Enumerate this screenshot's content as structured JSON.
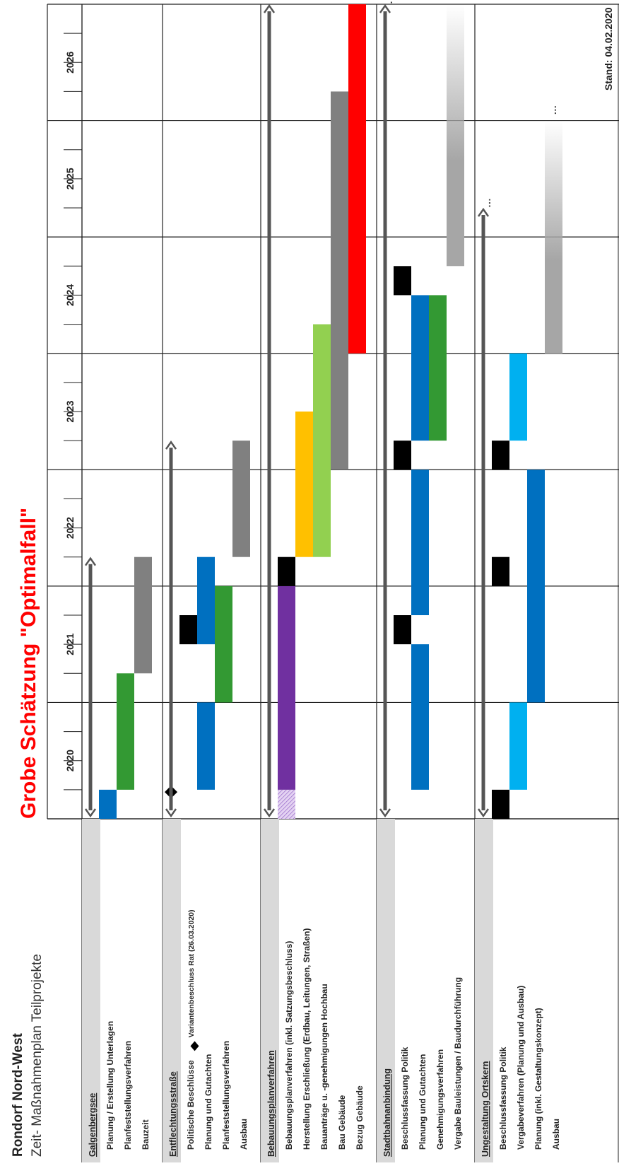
{
  "title": "Rondorf Nord-West",
  "subtitle": "Zeit- Maßnahmenplan Teilprojekte",
  "headline": "Grobe Schätzung \"Optimalfall\"",
  "stand": "Stand: 04.02.2020",
  "chart_data": {
    "type": "gantt",
    "years": [
      "2020",
      "2021",
      "2022",
      "2023",
      "2024",
      "2025",
      "2026"
    ],
    "time_unit": "quarter",
    "axis_range": [
      2019.75,
      2026.75
    ],
    "groups": [
      {
        "name": "Galgenbergsee",
        "range": [
          2019.75,
          2022.0
        ],
        "rows": [
          {
            "label": "Planung / Erstellung Unterlagen",
            "bars": [
              {
                "start": 2019.75,
                "end": 2020.0,
                "color": "#0070C0"
              }
            ]
          },
          {
            "label": "Planfeststellungsverfahren",
            "bars": [
              {
                "start": 2020.0,
                "end": 2021.0,
                "color": "#339933"
              }
            ]
          },
          {
            "label": "Bauzeit",
            "bars": [
              {
                "start": 2021.0,
                "end": 2022.0,
                "color": "#808080"
              }
            ]
          }
        ]
      },
      {
        "name": "Entflechtungsstraße",
        "range": [
          2019.75,
          2023.0
        ],
        "rows": [
          {
            "label": "Politische Beschlüsse",
            "label_extra": "Variantenbeschluss Rat (26.03.2020)",
            "bars": [
              {
                "start": 2021.25,
                "end": 2021.5,
                "color": "#000000"
              }
            ],
            "milestones": [
              2019.98
            ]
          },
          {
            "label": "Planung und Gutachten",
            "bars": [
              {
                "start": 2020.0,
                "end": 2020.75,
                "color": "#0070C0"
              },
              {
                "start": 2021.25,
                "end": 2022.0,
                "color": "#0070C0"
              }
            ]
          },
          {
            "label": "Planfeststellungsverfahren",
            "bars": [
              {
                "start": 2020.75,
                "end": 2021.75,
                "color": "#339933"
              }
            ]
          },
          {
            "label": "Ausbau",
            "bars": [
              {
                "start": 2022.0,
                "end": 2023.0,
                "color": "#808080"
              }
            ]
          }
        ]
      },
      {
        "name": "Bebauungsplanverfahren",
        "range": [
          2019.75,
          2026.75
        ],
        "rows": [
          {
            "label": "Bebauungsplanverfahren (inkl. Satzungsbeschluss)",
            "bars": [
              {
                "start": 2019.75,
                "end": 2020.0,
                "color": "#7030A0",
                "pattern": "hatch"
              },
              {
                "start": 2020.0,
                "end": 2021.75,
                "color": "#7030A0"
              },
              {
                "start": 2021.75,
                "end": 2022.0,
                "color": "#000000"
              }
            ]
          },
          {
            "label": "Herstellung Erschließung (Erdbau, Leitungen, Straßen)",
            "bars": [
              {
                "start": 2022.0,
                "end": 2023.25,
                "color": "#FFC000"
              }
            ]
          },
          {
            "label": "Bauanträge u. -genehmigungen Hochbau",
            "bars": [
              {
                "start": 2022.0,
                "end": 2024.0,
                "color": "#92D050"
              }
            ]
          },
          {
            "label": "Bau Gebäude",
            "bars": [
              {
                "start": 2022.75,
                "end": 2026.0,
                "color": "#808080"
              }
            ]
          },
          {
            "label": "Bezug Gebäude",
            "bars": [
              {
                "start": 2023.75,
                "end": 2026.75,
                "color": "#FF0000"
              }
            ]
          }
        ]
      },
      {
        "name": "Stadtbahnanbindung",
        "range": [
          2019.75,
          2026.75
        ],
        "continues": true,
        "rows": [
          {
            "label": "Beschlussfassung Politik",
            "bars": [
              {
                "start": 2021.25,
                "end": 2021.5,
                "color": "#000000"
              },
              {
                "start": 2022.75,
                "end": 2023.0,
                "color": "#000000"
              },
              {
                "start": 2024.25,
                "end": 2024.5,
                "color": "#000000"
              }
            ]
          },
          {
            "label": "Planung und Gutachten",
            "bars": [
              {
                "start": 2020.0,
                "end": 2021.25,
                "color": "#0070C0"
              },
              {
                "start": 2021.5,
                "end": 2022.75,
                "color": "#0070C0"
              },
              {
                "start": 2023.0,
                "end": 2024.25,
                "color": "#0070C0"
              }
            ]
          },
          {
            "label": "Genehmigungsverfahren",
            "bars": [
              {
                "start": 2023.0,
                "end": 2024.25,
                "color": "#339933"
              }
            ]
          },
          {
            "label": "Vergabe Bauleistungen / Baudurchführung",
            "bars": [
              {
                "start": 2024.5,
                "end": 2026.75,
                "color": "#A6A6A6",
                "fade": true
              }
            ],
            "continues": true
          }
        ]
      },
      {
        "name": "Ungestaltung Ortskern",
        "range": [
          2019.75,
          2025.0
        ],
        "continues": true,
        "rows": [
          {
            "label": "Beschlussfassung Politik",
            "bars": [
              {
                "start": 2019.75,
                "end": 2020.0,
                "color": "#000000"
              },
              {
                "start": 2021.75,
                "end": 2022.0,
                "color": "#000000"
              },
              {
                "start": 2022.75,
                "end": 2023.0,
                "color": "#000000"
              }
            ]
          },
          {
            "label": "Vergabeverfahren (Planung und Ausbau)",
            "bars": [
              {
                "start": 2020.0,
                "end": 2020.75,
                "color": "#00B0F0"
              },
              {
                "start": 2023.0,
                "end": 2023.75,
                "color": "#00B0F0"
              }
            ]
          },
          {
            "label": "Planung (inkl. Gestaltungskonzept)",
            "bars": [
              {
                "start": 2020.75,
                "end": 2022.75,
                "color": "#0070C0"
              }
            ]
          },
          {
            "label": "Ausbau",
            "bars": [
              {
                "start": 2023.75,
                "end": 2025.75,
                "color": "#A6A6A6",
                "fade": true
              }
            ],
            "continues": true
          }
        ]
      }
    ]
  }
}
